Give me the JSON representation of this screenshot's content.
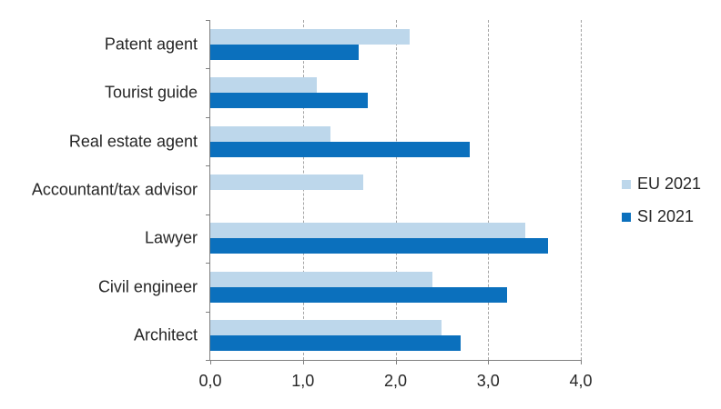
{
  "chart_data": {
    "type": "bar",
    "orientation": "horizontal",
    "title": "",
    "xlabel": "",
    "ylabel": "",
    "categories": [
      "Patent agent",
      "Tourist guide",
      "Real estate agent",
      "Accountant/tax advisor",
      "Lawyer",
      "Civil engineer",
      "Architect"
    ],
    "series": [
      {
        "name": "EU 2021",
        "color": "#BDD7EB",
        "values": [
          2.15,
          1.15,
          1.3,
          1.65,
          3.4,
          2.4,
          2.5
        ]
      },
      {
        "name": "SI 2021",
        "color": "#0B70BD",
        "values": [
          1.6,
          1.7,
          2.8,
          0,
          3.65,
          3.2,
          2.7
        ]
      }
    ],
    "xlim": [
      0,
      4
    ],
    "xticklabels": [
      "0,0",
      "1,0",
      "2,0",
      "3,0",
      "4,0"
    ],
    "grid": "vertical-dashed",
    "legend_position": "right"
  },
  "colors": {
    "axis": "#7F7F7F",
    "gridline": "#A3A3A3",
    "text": "#262626",
    "background": "#FFFFFF"
  }
}
